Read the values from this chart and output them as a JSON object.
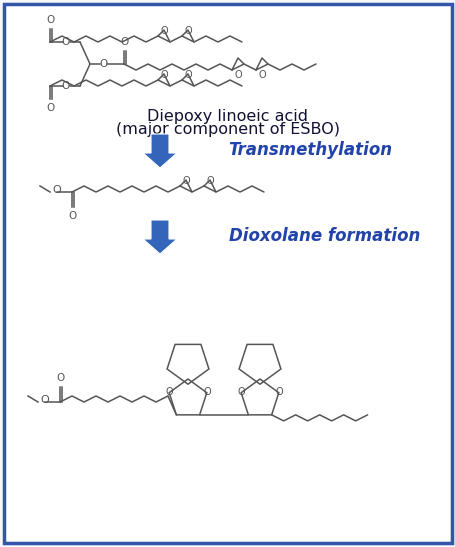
{
  "bg_color": "#f5f7fc",
  "border_color": "#3355aa",
  "line_color": "#555555",
  "arrow_color": "#3366bb",
  "label_color": "#2244aa",
  "title_line1": "Diepoxy linoeic acid",
  "title_line2": "(major component of ESBO)",
  "label1": "Transmethylation",
  "label2": "Dioxolane formation",
  "figsize": [
    4.56,
    5.47
  ],
  "dpi": 100
}
